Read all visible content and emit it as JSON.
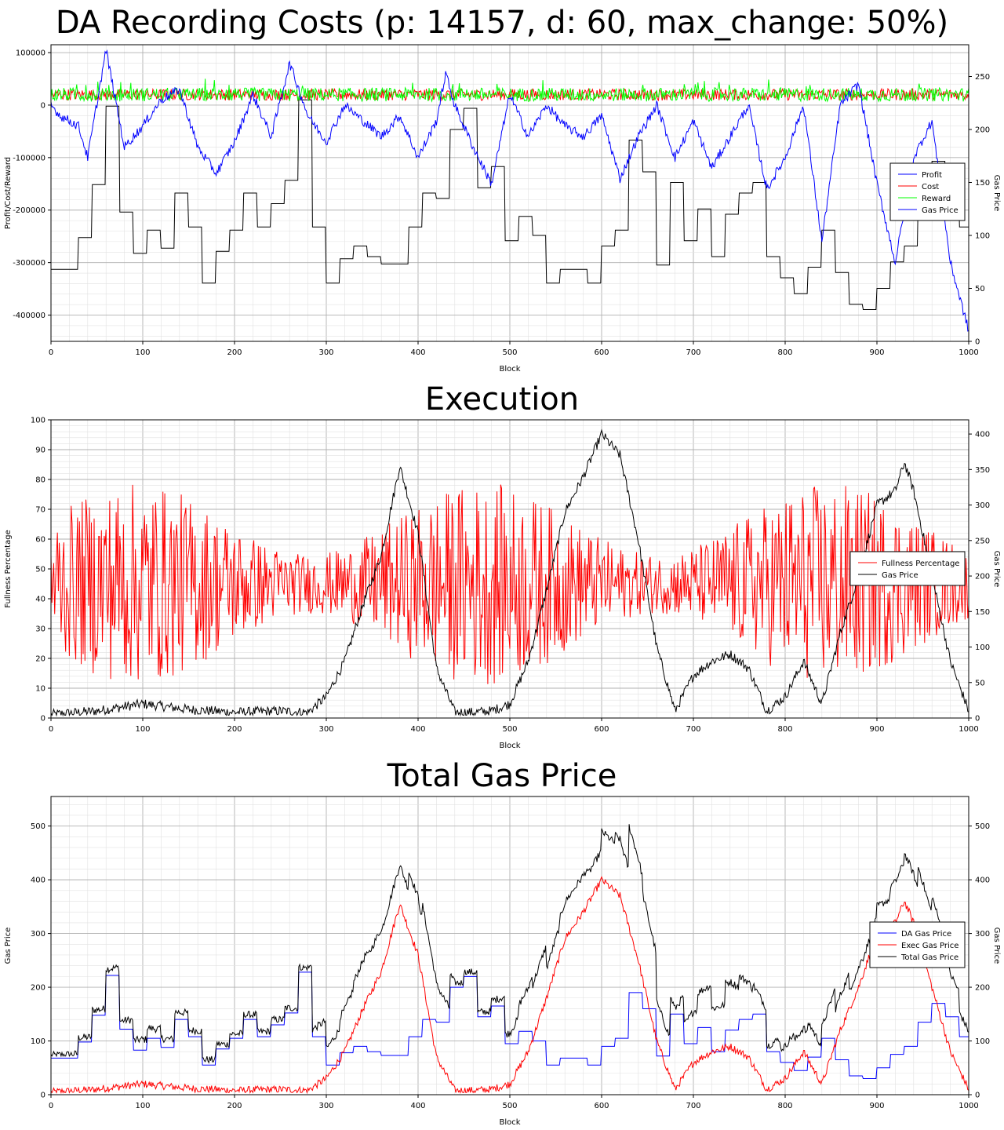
{
  "charts": [
    {
      "title": "DA Recording Costs (p: 14157, d: 60, max_change: 50%)",
      "xlabel": "Block",
      "ylabel_left": "Profit/Cost/Reward",
      "ylabel_right": "Gas Price",
      "xticks": [
        "0",
        "100",
        "200",
        "300",
        "400",
        "500",
        "600",
        "700",
        "800",
        "900",
        "1000"
      ],
      "yticks_left": [
        "100000",
        "0",
        "-100000",
        "-200000",
        "-300000",
        "-400000"
      ],
      "yticks_right": [
        "250",
        "200",
        "150",
        "100",
        "50",
        "0"
      ],
      "legend": [
        "Profit",
        "Cost",
        "Reward",
        "Gas Price"
      ]
    },
    {
      "title": "Execution",
      "xlabel": "Block",
      "ylabel_left": "Fullness Percentage",
      "ylabel_right": "Gas Price",
      "xticks": [
        "0",
        "100",
        "200",
        "300",
        "400",
        "500",
        "600",
        "700",
        "800",
        "900",
        "1000"
      ],
      "yticks_left": [
        "100",
        "90",
        "80",
        "70",
        "60",
        "50",
        "40",
        "30",
        "20",
        "10",
        "0"
      ],
      "yticks_right": [
        "400",
        "350",
        "300",
        "250",
        "200",
        "150",
        "100",
        "50",
        "0"
      ],
      "legend": [
        "Fullness Percentage",
        "Gas Price"
      ]
    },
    {
      "title": "Total Gas Price",
      "xlabel": "Block",
      "ylabel_left": "Gas Price",
      "ylabel_right": "Gas Price",
      "xticks": [
        "0",
        "100",
        "200",
        "300",
        "400",
        "500",
        "600",
        "700",
        "800",
        "900",
        "1000"
      ],
      "yticks_left": [
        "500",
        "400",
        "300",
        "200",
        "100",
        "0"
      ],
      "yticks_right": [
        "500",
        "400",
        "300",
        "200",
        "100",
        "0"
      ],
      "legend": [
        "DA Gas Price",
        "Exec Gas Price",
        "Total Gas Price"
      ]
    }
  ],
  "chart_data": [
    {
      "type": "line",
      "title": "DA Recording Costs (p: 14157, d: 60, max_change: 50%)",
      "xlabel": "Block",
      "ylabel": "Profit/Cost/Reward",
      "ylabel_right": "Gas Price",
      "xlim": [
        0,
        1000
      ],
      "ylim": [
        -450000,
        115000
      ],
      "ylim_right": [
        0,
        280
      ],
      "grid": true,
      "legend_position": "center-right",
      "series": [
        {
          "name": "Profit",
          "axis": "left",
          "color": "#0000ff",
          "x": [
            0,
            10,
            30,
            40,
            60,
            80,
            100,
            120,
            140,
            160,
            180,
            200,
            220,
            240,
            260,
            280,
            300,
            320,
            340,
            360,
            380,
            400,
            420,
            430,
            440,
            460,
            480,
            500,
            520,
            540,
            560,
            580,
            600,
            620,
            640,
            660,
            680,
            700,
            720,
            740,
            760,
            780,
            800,
            820,
            840,
            860,
            880,
            900,
            920,
            940,
            960,
            980,
            1000
          ],
          "y": [
            0,
            -20000,
            -40000,
            -100000,
            105000,
            -80000,
            -40000,
            10000,
            30000,
            -80000,
            -130000,
            -70000,
            20000,
            -60000,
            80000,
            -20000,
            -70000,
            0,
            -30000,
            -60000,
            -20000,
            -100000,
            -30000,
            60000,
            0,
            -80000,
            -150000,
            20000,
            -60000,
            0,
            -40000,
            -60000,
            -20000,
            -140000,
            -60000,
            0,
            -100000,
            -30000,
            -120000,
            -60000,
            0,
            -160000,
            -100000,
            0,
            -260000,
            0,
            40000,
            -150000,
            -300000,
            -100000,
            -30000,
            -300000,
            -430000
          ]
        },
        {
          "name": "Cost",
          "axis": "left",
          "color": "#ff0000",
          "x": [
            0,
            1000
          ],
          "y": [
            20000,
            20000
          ]
        },
        {
          "name": "Reward",
          "axis": "left",
          "color": "#00ff00",
          "x": [
            0,
            1000
          ],
          "y": [
            20000,
            20000
          ]
        },
        {
          "name": "Gas Price",
          "axis": "right",
          "color": "#000000",
          "x": [
            0,
            15,
            30,
            45,
            60,
            75,
            90,
            105,
            120,
            135,
            150,
            165,
            180,
            195,
            210,
            225,
            240,
            255,
            270,
            285,
            300,
            315,
            330,
            345,
            360,
            375,
            390,
            405,
            420,
            435,
            450,
            465,
            480,
            495,
            510,
            525,
            540,
            555,
            570,
            585,
            600,
            615,
            630,
            645,
            660,
            675,
            690,
            705,
            720,
            735,
            750,
            765,
            780,
            795,
            810,
            825,
            840,
            855,
            870,
            885,
            900,
            915,
            930,
            945,
            960,
            975,
            990,
            1000
          ],
          "y": [
            68,
            68,
            98,
            148,
            222,
            122,
            83,
            105,
            88,
            140,
            108,
            55,
            85,
            105,
            140,
            108,
            130,
            152,
            228,
            108,
            55,
            78,
            90,
            80,
            73,
            73,
            108,
            140,
            135,
            200,
            220,
            145,
            165,
            95,
            118,
            100,
            55,
            68,
            68,
            55,
            90,
            105,
            190,
            160,
            72,
            150,
            95,
            125,
            80,
            120,
            140,
            150,
            80,
            60,
            45,
            70,
            105,
            65,
            35,
            30,
            50,
            75,
            90,
            135,
            170,
            145,
            108,
            108
          ]
        }
      ]
    },
    {
      "type": "line",
      "title": "Execution",
      "xlabel": "Block",
      "ylabel": "Fullness Percentage",
      "ylabel_right": "Gas Price",
      "xlim": [
        0,
        1000
      ],
      "ylim": [
        0,
        100
      ],
      "ylim_right": [
        0,
        420
      ],
      "grid": true,
      "legend_position": "center-right",
      "series": [
        {
          "name": "Fullness Percentage",
          "axis": "left",
          "color": "#ff0000",
          "x": [
            0,
            1000
          ],
          "y": [
            40,
            40
          ]
        },
        {
          "name": "Gas Price",
          "axis": "right",
          "color": "#000000",
          "x": [
            0,
            50,
            100,
            150,
            200,
            250,
            280,
            300,
            320,
            340,
            360,
            380,
            400,
            420,
            440,
            460,
            480,
            500,
            520,
            540,
            560,
            580,
            600,
            620,
            640,
            660,
            680,
            700,
            720,
            740,
            760,
            780,
            800,
            820,
            840,
            860,
            880,
            900,
            920,
            930,
            940,
            960,
            980,
            1000
          ],
          "y": [
            5,
            10,
            20,
            12,
            8,
            10,
            8,
            30,
            80,
            160,
            230,
            355,
            260,
            70,
            8,
            8,
            10,
            20,
            80,
            180,
            290,
            340,
            400,
            370,
            250,
            100,
            10,
            60,
            80,
            90,
            70,
            10,
            30,
            80,
            20,
            120,
            200,
            300,
            320,
            360,
            320,
            200,
            80,
            10
          ]
        }
      ]
    },
    {
      "type": "line",
      "title": "Total Gas Price",
      "xlabel": "Block",
      "ylabel": "Gas Price",
      "ylabel_right": "Gas Price",
      "xlim": [
        0,
        1000
      ],
      "ylim": [
        0,
        555
      ],
      "ylim_right": [
        0,
        555
      ],
      "grid": true,
      "legend_position": "center-right",
      "series": [
        {
          "name": "DA Gas Price",
          "axis": "left",
          "color": "#0000ff",
          "x": [
            0,
            15,
            30,
            45,
            60,
            75,
            90,
            105,
            120,
            135,
            150,
            165,
            180,
            195,
            210,
            225,
            240,
            255,
            270,
            285,
            300,
            315,
            330,
            345,
            360,
            375,
            390,
            405,
            420,
            435,
            450,
            465,
            480,
            495,
            510,
            525,
            540,
            555,
            570,
            585,
            600,
            615,
            630,
            645,
            660,
            675,
            690,
            705,
            720,
            735,
            750,
            765,
            780,
            795,
            810,
            825,
            840,
            855,
            870,
            885,
            900,
            915,
            930,
            945,
            960,
            975,
            990,
            1000
          ],
          "y": [
            68,
            68,
            98,
            148,
            222,
            122,
            83,
            105,
            88,
            140,
            108,
            55,
            85,
            105,
            140,
            108,
            130,
            152,
            228,
            108,
            55,
            78,
            90,
            80,
            73,
            73,
            108,
            140,
            135,
            200,
            220,
            145,
            165,
            95,
            118,
            100,
            55,
            68,
            68,
            55,
            90,
            105,
            190,
            160,
            72,
            150,
            95,
            125,
            80,
            120,
            140,
            150,
            80,
            60,
            45,
            70,
            105,
            65,
            35,
            30,
            50,
            75,
            90,
            135,
            170,
            145,
            108,
            108
          ]
        },
        {
          "name": "Exec Gas Price",
          "axis": "left",
          "color": "#ff0000",
          "x": [
            0,
            50,
            100,
            150,
            200,
            250,
            280,
            300,
            320,
            340,
            360,
            380,
            400,
            420,
            440,
            460,
            480,
            500,
            520,
            540,
            560,
            580,
            600,
            620,
            640,
            660,
            680,
            700,
            720,
            740,
            760,
            780,
            800,
            820,
            840,
            860,
            880,
            900,
            920,
            930,
            940,
            960,
            980,
            1000
          ],
          "y": [
            5,
            10,
            20,
            12,
            8,
            10,
            8,
            30,
            80,
            160,
            230,
            355,
            260,
            70,
            8,
            8,
            10,
            20,
            80,
            180,
            290,
            340,
            400,
            370,
            250,
            100,
            10,
            60,
            80,
            90,
            70,
            10,
            30,
            80,
            20,
            120,
            200,
            300,
            320,
            360,
            320,
            200,
            80,
            10
          ]
        },
        {
          "name": "Total Gas Price",
          "axis": "left",
          "color": "#000000",
          "x": [],
          "y": []
        }
      ]
    }
  ]
}
